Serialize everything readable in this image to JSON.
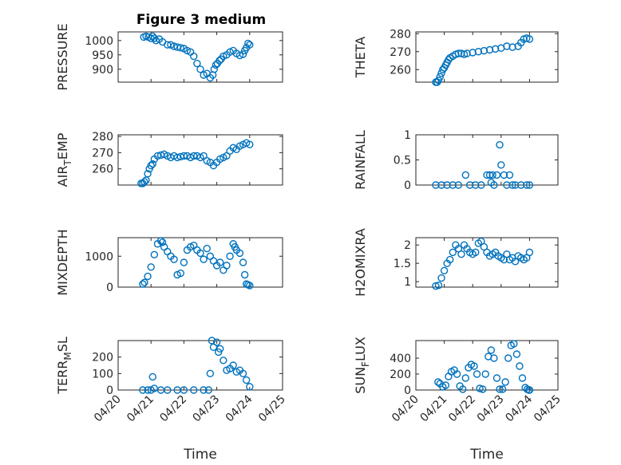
{
  "figure": {
    "title": "Figure 3 medium"
  },
  "chart_data": [
    {
      "type": "scatter",
      "title": "Figure 3 medium",
      "ylabel": "PRESSURE",
      "ylim": [
        855,
        1030
      ],
      "yticks": [
        900,
        950,
        1000
      ],
      "xlim": [
        0,
        5
      ],
      "xticks": [],
      "grid": true,
      "series": [
        {
          "x": [
            0.78,
            0.85,
            0.92,
            1.0,
            1.05,
            1.1,
            1.15,
            1.25,
            1.35,
            1.5,
            1.6,
            1.7,
            1.8,
            1.9,
            2.0,
            2.1,
            2.2,
            2.3,
            2.4,
            2.5,
            2.6,
            2.7,
            2.8,
            2.88,
            2.92,
            2.97,
            3.02,
            3.08,
            3.13,
            3.2,
            3.3,
            3.4,
            3.5,
            3.6,
            3.7,
            3.8,
            3.85,
            3.9,
            3.95,
            4.0
          ],
          "y": [
            1012,
            1015,
            1012,
            1007,
            1015,
            1008,
            1000,
            1005,
            995,
            985,
            985,
            980,
            977,
            975,
            972,
            965,
            960,
            945,
            920,
            900,
            880,
            885,
            870,
            880,
            900,
            915,
            920,
            930,
            935,
            945,
            950,
            960,
            965,
            955,
            948,
            952,
            965,
            975,
            990,
            985
          ]
        }
      ]
    },
    {
      "type": "scatter",
      "ylabel": "THETA",
      "ylim": [
        253,
        281
      ],
      "yticks": [
        260,
        270,
        280
      ],
      "xlim": [
        0,
        5
      ],
      "xticks": [],
      "grid": true,
      "series": [
        {
          "x": [
            0.7,
            0.75,
            0.8,
            0.85,
            0.9,
            0.95,
            1.0,
            1.05,
            1.1,
            1.15,
            1.2,
            1.3,
            1.4,
            1.5,
            1.6,
            1.7,
            1.8,
            2.0,
            2.2,
            2.4,
            2.6,
            2.8,
            3.0,
            3.2,
            3.4,
            3.6,
            3.7,
            3.8,
            3.9,
            4.0
          ],
          "y": [
            253,
            253,
            254,
            256,
            258,
            260,
            261,
            262.5,
            264,
            265.5,
            266.5,
            267.5,
            268.5,
            269,
            269,
            268.5,
            269,
            269.5,
            270,
            270.5,
            271,
            271.5,
            272,
            273,
            272.5,
            273,
            275,
            277,
            277.5,
            277
          ]
        }
      ]
    },
    {
      "type": "scatter",
      "ylabel": "AIR_TEMP",
      "ylim": [
        250,
        281
      ],
      "yticks": [
        260,
        270,
        280
      ],
      "xlim": [
        0,
        5
      ],
      "xticks": [],
      "grid": true,
      "series": [
        {
          "x": [
            0.7,
            0.75,
            0.8,
            0.85,
            0.9,
            0.95,
            1.0,
            1.05,
            1.1,
            1.2,
            1.3,
            1.4,
            1.5,
            1.6,
            1.7,
            1.8,
            1.9,
            2.0,
            2.1,
            2.2,
            2.3,
            2.4,
            2.5,
            2.6,
            2.7,
            2.8,
            2.9,
            3.0,
            3.1,
            3.2,
            3.3,
            3.4,
            3.5,
            3.6,
            3.7,
            3.8,
            3.9,
            4.0
          ],
          "y": [
            251,
            251,
            252,
            253,
            257,
            260,
            262,
            263,
            266,
            268,
            268.5,
            269,
            268,
            267,
            268,
            267,
            267.5,
            268,
            268,
            267,
            268,
            268,
            267,
            268,
            265,
            264,
            262,
            264,
            266,
            267,
            268,
            271,
            273,
            272,
            274,
            275,
            276,
            275
          ]
        }
      ]
    },
    {
      "type": "scatter",
      "ylabel": "RAINFALL",
      "ylim": [
        0,
        1
      ],
      "yticks": [
        0,
        0.5,
        1
      ],
      "xlim": [
        0,
        5
      ],
      "xticks": [],
      "grid": true,
      "series": [
        {
          "x": [
            0.7,
            0.9,
            1.1,
            1.3,
            1.5,
            1.75,
            1.9,
            2.1,
            2.3,
            2.5,
            2.6,
            2.65,
            2.7,
            2.75,
            2.85,
            2.95,
            3.0,
            3.1,
            3.2,
            3.3,
            3.4,
            3.5,
            3.7,
            3.9,
            4.0
          ],
          "y": [
            0,
            0,
            0,
            0,
            0,
            0.2,
            0,
            0,
            0,
            0.2,
            0.2,
            0.05,
            0.2,
            0,
            0.2,
            0.8,
            0.4,
            0.2,
            0,
            0.2,
            0,
            0,
            0,
            0,
            0
          ]
        }
      ]
    },
    {
      "type": "scatter",
      "ylabel": "MIXDEPTH",
      "ylim": [
        0,
        1600
      ],
      "yticks": [
        0,
        1000
      ],
      "xlim": [
        0,
        5
      ],
      "xticks": [],
      "grid": true,
      "series": [
        {
          "x": [
            0.75,
            0.8,
            0.9,
            1.0,
            1.1,
            1.2,
            1.3,
            1.35,
            1.4,
            1.5,
            1.6,
            1.7,
            1.8,
            1.9,
            2.0,
            2.1,
            2.2,
            2.3,
            2.4,
            2.5,
            2.6,
            2.7,
            2.8,
            2.9,
            3.0,
            3.1,
            3.2,
            3.3,
            3.4,
            3.5,
            3.55,
            3.6,
            3.7,
            3.8,
            3.85,
            3.9,
            3.95,
            4.0
          ],
          "y": [
            100,
            150,
            350,
            650,
            1050,
            1400,
            1500,
            1450,
            1300,
            1150,
            1000,
            900,
            400,
            450,
            800,
            1200,
            1300,
            1350,
            1200,
            1100,
            900,
            1250,
            1000,
            850,
            700,
            800,
            550,
            700,
            1000,
            1400,
            1300,
            1200,
            1100,
            800,
            400,
            100,
            80,
            50
          ]
        }
      ]
    },
    {
      "type": "scatter",
      "ylabel": "H2OMIXRA",
      "ylim": [
        0.85,
        2.2
      ],
      "yticks": [
        1,
        1.5,
        2
      ],
      "xlim": [
        0,
        5
      ],
      "xticks": [],
      "grid": true,
      "series": [
        {
          "x": [
            0.7,
            0.8,
            0.9,
            1.0,
            1.1,
            1.2,
            1.3,
            1.4,
            1.5,
            1.6,
            1.7,
            1.8,
            1.9,
            2.0,
            2.1,
            2.2,
            2.3,
            2.4,
            2.5,
            2.6,
            2.7,
            2.8,
            2.9,
            3.0,
            3.1,
            3.2,
            3.3,
            3.4,
            3.5,
            3.6,
            3.7,
            3.8,
            3.9,
            4.0
          ],
          "y": [
            0.88,
            0.9,
            1.1,
            1.3,
            1.5,
            1.6,
            1.8,
            2.0,
            1.9,
            1.75,
            2.0,
            1.9,
            1.8,
            1.75,
            1.8,
            2.05,
            2.1,
            1.95,
            1.8,
            1.7,
            1.75,
            1.8,
            1.7,
            1.65,
            1.6,
            1.75,
            1.6,
            1.65,
            1.55,
            1.7,
            1.65,
            1.6,
            1.65,
            1.8
          ]
        }
      ]
    },
    {
      "type": "scatter",
      "ylabel": "TERR_MSL",
      "ylim": [
        0,
        300
      ],
      "yticks": [
        0,
        100,
        200
      ],
      "xlim": [
        0,
        5
      ],
      "xticks": [
        "04/20",
        "04/21",
        "04/22",
        "04/23",
        "04/24",
        "04/25"
      ],
      "xlabel": "Time",
      "grid": true,
      "series": [
        {
          "x": [
            0.75,
            0.9,
            1.0,
            1.05,
            1.1,
            1.3,
            1.5,
            1.8,
            2.0,
            2.3,
            2.6,
            2.75,
            2.8,
            2.85,
            2.9,
            3.0,
            3.05,
            3.1,
            3.2,
            3.3,
            3.4,
            3.5,
            3.6,
            3.7,
            3.8,
            3.9,
            4.0
          ],
          "y": [
            0,
            0,
            0,
            80,
            10,
            0,
            0,
            0,
            0,
            0,
            0,
            0,
            100,
            300,
            260,
            290,
            230,
            250,
            180,
            120,
            130,
            150,
            110,
            120,
            100,
            60,
            20
          ]
        }
      ]
    },
    {
      "type": "scatter",
      "ylabel": "SUN_FLUX",
      "ylim": [
        0,
        620
      ],
      "yticks": [
        0,
        200,
        400
      ],
      "xlim": [
        0,
        5
      ],
      "xticks": [
        "04/20",
        "04/21",
        "04/22",
        "04/23",
        "04/24",
        "04/25"
      ],
      "xlabel": "Time",
      "grid": true,
      "series": [
        {
          "x": [
            0.78,
            0.85,
            0.95,
            1.05,
            1.15,
            1.25,
            1.35,
            1.45,
            1.55,
            1.65,
            1.75,
            1.85,
            1.95,
            2.05,
            2.15,
            2.25,
            2.35,
            2.45,
            2.55,
            2.65,
            2.75,
            2.85,
            2.95,
            3.05,
            3.15,
            3.25,
            3.35,
            3.45,
            3.55,
            3.65,
            3.75,
            3.85,
            3.92,
            3.98,
            4.0
          ],
          "y": [
            100,
            80,
            40,
            60,
            170,
            230,
            250,
            200,
            50,
            10,
            150,
            280,
            320,
            300,
            200,
            20,
            10,
            200,
            420,
            500,
            400,
            150,
            10,
            10,
            100,
            400,
            560,
            580,
            450,
            300,
            150,
            30,
            10,
            0,
            0
          ]
        }
      ]
    }
  ]
}
